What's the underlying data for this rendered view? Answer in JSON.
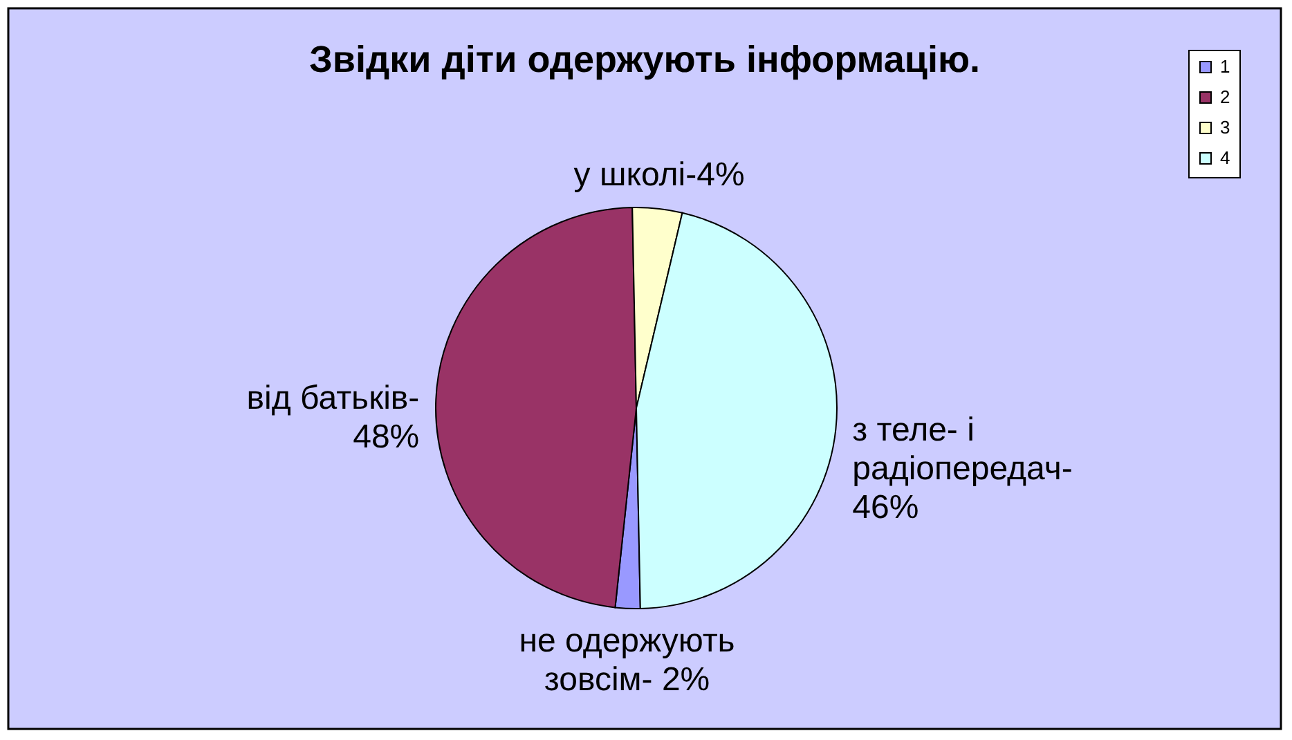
{
  "chart_data": {
    "type": "pie",
    "title": "Звідки діти одержують інформацію.",
    "categories": [
      "1",
      "2",
      "3",
      "4"
    ],
    "values": [
      2,
      48,
      4,
      46
    ],
    "colors": [
      "#9999ff",
      "#993366",
      "#ffffcc",
      "#ccffff"
    ],
    "value_labels": [
      "не одержують зовсім- 2%",
      "від батьків-48%",
      "у школі-4%",
      "з теле- і радіопередач-46%"
    ],
    "legend": "top right"
  }
}
